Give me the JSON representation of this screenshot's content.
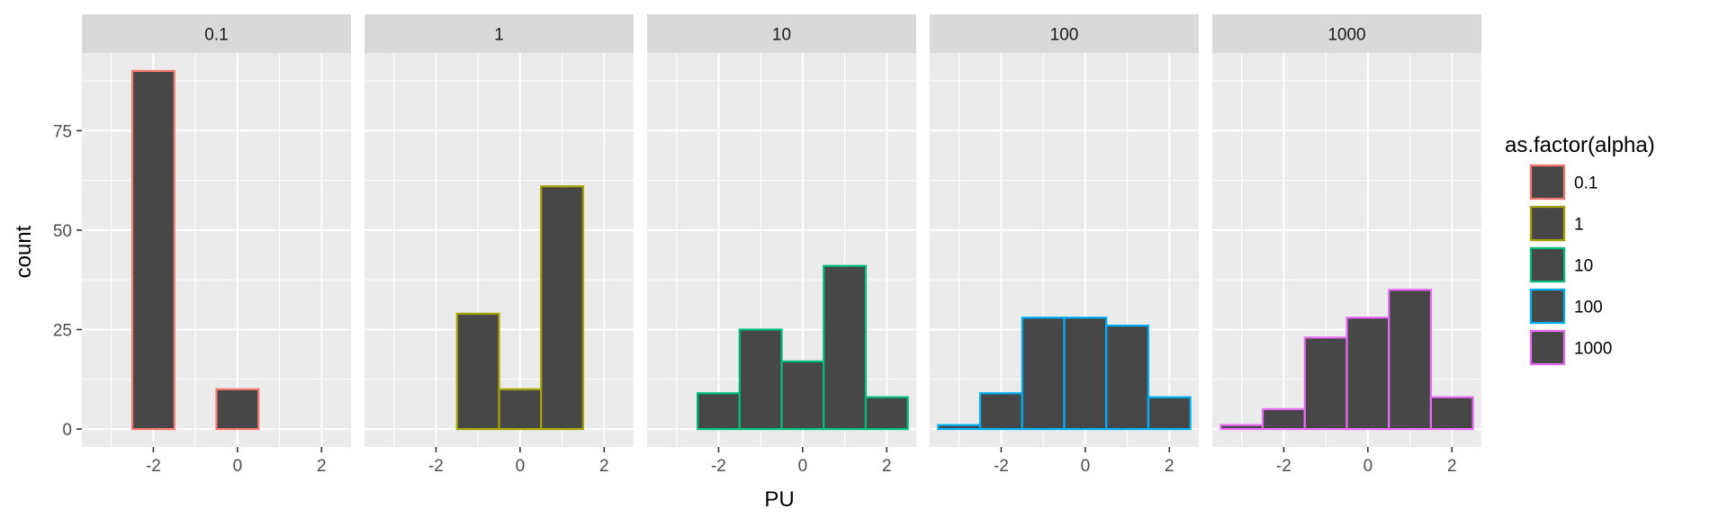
{
  "chart_data": {
    "type": "bar",
    "subtype": "faceted-histogram",
    "xlabel": "PU",
    "ylabel": "count",
    "x_ticks": [
      -2,
      0,
      2
    ],
    "x_tick_labels": [
      "-2",
      "0",
      "2"
    ],
    "y_ticks": [
      0,
      25,
      50,
      75
    ],
    "y_tick_labels": [
      "0",
      "25",
      "50",
      "75"
    ],
    "xlim": [
      -3.7,
      2.7
    ],
    "ylim": [
      -4.5,
      94.5
    ],
    "grid": true,
    "legend_title": "as.factor(alpha)",
    "legend_position": "right",
    "bar_fill": "#474747",
    "panel_background": "#ebebeb",
    "strip_background": "#d9d9d9",
    "bin_centers": [
      -3,
      -2,
      -1,
      0,
      1,
      2
    ],
    "panels": [
      {
        "label": "0.1",
        "color": "#f8766d",
        "counts": [
          0,
          90,
          0,
          10,
          0,
          0
        ]
      },
      {
        "label": "1",
        "color": "#a3a500",
        "counts": [
          0,
          0,
          29,
          10,
          61,
          0
        ]
      },
      {
        "label": "10",
        "color": "#00bf7d",
        "counts": [
          0,
          9,
          25,
          17,
          41,
          8
        ]
      },
      {
        "label": "100",
        "color": "#00b0f6",
        "counts": [
          1,
          9,
          28,
          28,
          26,
          8
        ]
      },
      {
        "label": "1000",
        "color": "#e76bf3",
        "counts": [
          1,
          5,
          23,
          28,
          35,
          8
        ]
      }
    ]
  }
}
